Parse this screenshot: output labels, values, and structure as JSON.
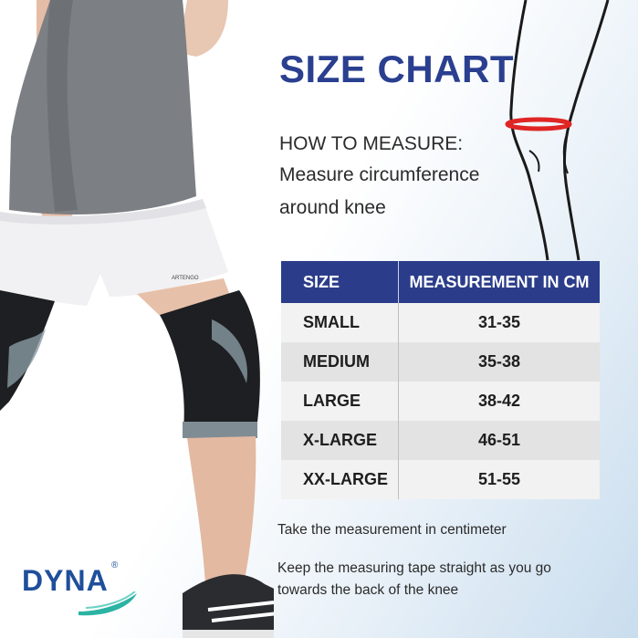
{
  "title": "SIZE CHART",
  "how_to_measure": {
    "heading": "HOW TO MEASURE:",
    "line1": "Measure circumference",
    "line2": "around knee"
  },
  "table": {
    "headers": [
      "SIZE",
      "MEASUREMENT IN CM"
    ],
    "rows": [
      {
        "size": "SMALL",
        "measurement": "31-35"
      },
      {
        "size": "MEDIUM",
        "measurement": "35-38"
      },
      {
        "size": "LARGE",
        "measurement": "38-42"
      },
      {
        "size": "X-LARGE",
        "measurement": "46-51"
      },
      {
        "size": "XX-LARGE",
        "measurement": "51-55"
      }
    ]
  },
  "notes": {
    "note1": "Take the measurement in centimeter",
    "note2": "Keep the measuring tape straight as you go towards the back of the knee"
  },
  "brand": {
    "name": "DYNA",
    "registered_mark": "®",
    "shorts_label": "ARTENGO"
  },
  "colors": {
    "title_blue": "#2a3f8f",
    "table_header": "#2b3d8a",
    "measure_band": "#e02525",
    "brand_blue": "#1f4f9b",
    "brand_teal": "#2bb3a3"
  }
}
